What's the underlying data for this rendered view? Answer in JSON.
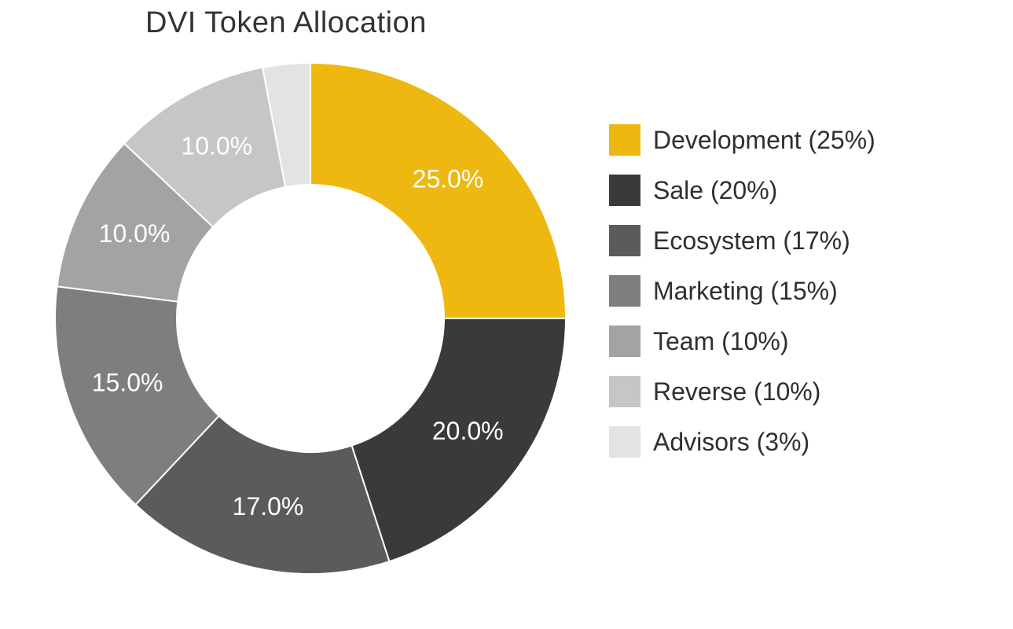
{
  "chart": {
    "type": "donut",
    "title": "DVI Token Allocation",
    "background_color": "#ffffff",
    "title_color": "#333333",
    "title_fontsize": 38,
    "outer_radius": 325,
    "inner_radius": 170,
    "start_angle_deg": 0,
    "direction": "clockwise",
    "gap_color": "#ffffff",
    "gap_width": 2,
    "slice_label_fontsize": 32,
    "slice_label_color": "#ffffff",
    "legend": {
      "label_fontsize": 32,
      "label_color": "#2f2f2f",
      "swatch_size": 40,
      "row_gap": 24
    },
    "slices": [
      {
        "name": "Development",
        "value": 25,
        "slice_label": "25.0%",
        "legend_label": "Development (25%)",
        "color": "#efb810"
      },
      {
        "name": "Sale",
        "value": 20,
        "slice_label": "20.0%",
        "legend_label": "Sale (20%)",
        "color": "#3a3a3a"
      },
      {
        "name": "Ecosystem",
        "value": 17,
        "slice_label": "17.0%",
        "legend_label": "Ecosystem (17%)",
        "color": "#5b5b5b"
      },
      {
        "name": "Marketing",
        "value": 15,
        "slice_label": "15.0%",
        "legend_label": "Marketing (15%)",
        "color": "#7e7e7e"
      },
      {
        "name": "Team",
        "value": 10,
        "slice_label": "10.0%",
        "legend_label": "Team (10%)",
        "color": "#a3a3a3"
      },
      {
        "name": "Reverse",
        "value": 10,
        "slice_label": "10.0%",
        "legend_label": "Reverse (10%)",
        "color": "#c6c6c6"
      },
      {
        "name": "Advisors",
        "value": 3,
        "slice_label": "",
        "legend_label": "Advisors (3%)",
        "color": "#e3e3e3"
      }
    ]
  }
}
